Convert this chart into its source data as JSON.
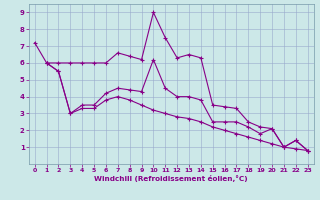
{
  "xlabel": "Windchill (Refroidissement éolien,°C)",
  "background_color": "#cce8e8",
  "line_color": "#880088",
  "grid_color": "#99aacc",
  "series1_x": [
    0,
    1,
    2,
    3,
    4,
    5,
    6,
    7,
    8,
    9,
    10,
    11,
    12,
    13,
    14,
    15,
    16,
    17,
    18,
    19,
    20,
    21,
    22,
    23
  ],
  "series1_y": [
    7.2,
    6.0,
    6.0,
    6.0,
    6.0,
    6.0,
    6.0,
    6.6,
    6.4,
    6.2,
    9.0,
    7.5,
    6.3,
    6.5,
    6.3,
    3.5,
    3.4,
    3.3,
    2.5,
    2.2,
    2.1,
    1.0,
    1.4,
    0.8
  ],
  "series2_x": [
    1,
    2,
    3,
    4,
    5,
    6,
    7,
    8,
    9,
    10,
    11,
    12,
    13,
    14,
    15,
    16,
    17,
    18,
    19,
    20,
    21,
    22,
    23
  ],
  "series2_y": [
    6.0,
    5.5,
    3.0,
    3.5,
    3.5,
    4.2,
    4.5,
    4.4,
    4.3,
    6.2,
    4.5,
    4.0,
    4.0,
    3.8,
    2.5,
    2.5,
    2.5,
    2.2,
    1.8,
    2.1,
    1.0,
    1.4,
    0.8
  ],
  "series3_x": [
    1,
    2,
    3,
    4,
    5,
    6,
    7,
    8,
    9,
    10,
    11,
    12,
    13,
    14,
    15,
    16,
    17,
    18,
    19,
    20,
    21,
    22,
    23
  ],
  "series3_y": [
    6.0,
    5.5,
    3.0,
    3.3,
    3.3,
    3.8,
    4.0,
    3.8,
    3.5,
    3.2,
    3.0,
    2.8,
    2.7,
    2.5,
    2.2,
    2.0,
    1.8,
    1.6,
    1.4,
    1.2,
    1.0,
    0.9,
    0.8
  ],
  "xlim": [
    -0.5,
    23.5
  ],
  "ylim": [
    0,
    9.5
  ],
  "xticks": [
    0,
    1,
    2,
    3,
    4,
    5,
    6,
    7,
    8,
    9,
    10,
    11,
    12,
    13,
    14,
    15,
    16,
    17,
    18,
    19,
    20,
    21,
    22,
    23
  ],
  "yticks": [
    1,
    2,
    3,
    4,
    5,
    6,
    7,
    8,
    9
  ]
}
